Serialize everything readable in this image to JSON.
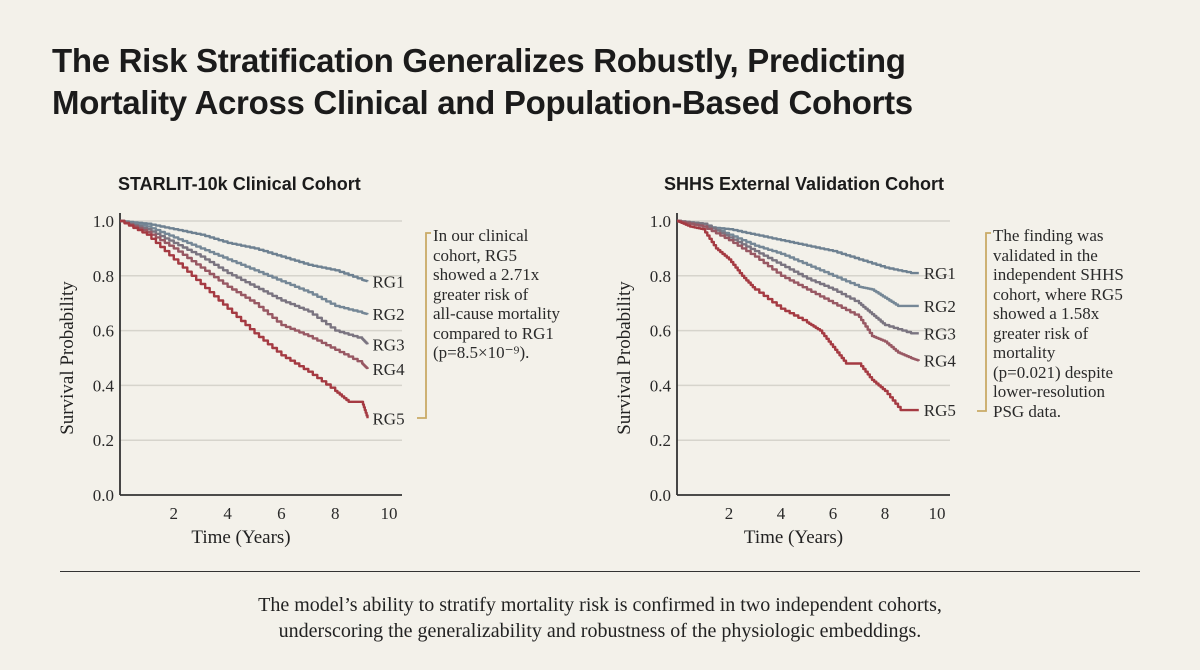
{
  "title_line1": "The Risk Stratification Generalizes Robustly, Predicting",
  "title_line2": "Mortality Across Clinical and Population-Based Cohorts",
  "footer_line1": "The model’s ability to stratify mortality risk is confirmed in two independent cohorts,",
  "footer_line2": "underscoring the generalizability and robustness of the physiologic embeddings.",
  "notes": [
    [
      "In our clinical",
      "cohort, RG5",
      "showed a 2.71x",
      "greater risk of",
      "all-cause mortality",
      "compared to RG1",
      "(p=8.5×10⁻⁹)."
    ],
    [
      "The finding was",
      "validated in the",
      "independent SHHS",
      "cohort, where RG5",
      "showed a 1.58x",
      "greater risk of",
      "mortality",
      "(p=0.021) despite",
      "lower-resolution",
      "PSG data."
    ]
  ],
  "colors": {
    "RG1": "#6e8191",
    "RG2": "#758796",
    "RG3": "#7a7480",
    "RG4": "#985863",
    "RG5": "#a53a42",
    "bracket": "#c9aa66",
    "grid": "#d6d4cc"
  },
  "chart_data": [
    {
      "type": "line",
      "title": "STARLIT-10k Clinical Cohort",
      "xlabel": "Time (Years)",
      "ylabel": "Survival Probability",
      "xlim": [
        0,
        10.5
      ],
      "ylim": [
        0,
        1.0
      ],
      "xticks": [
        "2",
        "4",
        "6",
        "8",
        "10"
      ],
      "yticks": [
        "0.0",
        "0.2",
        "0.4",
        "0.6",
        "0.8",
        "1.0"
      ],
      "grid": true,
      "step": true,
      "series": [
        {
          "name": "RG1",
          "x": [
            0,
            1,
            2,
            3,
            4,
            5,
            6,
            7,
            8,
            9,
            9.2
          ],
          "y": [
            1,
            0.99,
            0.97,
            0.95,
            0.92,
            0.9,
            0.87,
            0.84,
            0.82,
            0.785,
            0.78
          ]
        },
        {
          "name": "RG2",
          "x": [
            0,
            1,
            2,
            3,
            4,
            5,
            6,
            7,
            8,
            9,
            9.2
          ],
          "y": [
            1,
            0.98,
            0.94,
            0.9,
            0.86,
            0.82,
            0.78,
            0.74,
            0.69,
            0.665,
            0.66
          ]
        },
        {
          "name": "RG3",
          "x": [
            0,
            1,
            2,
            3,
            4,
            5,
            6,
            7,
            8,
            9,
            9.2
          ],
          "y": [
            1,
            0.97,
            0.92,
            0.87,
            0.81,
            0.76,
            0.71,
            0.67,
            0.6,
            0.57,
            0.55
          ]
        },
        {
          "name": "RG4",
          "x": [
            0,
            1,
            2,
            3,
            4,
            5,
            6,
            7,
            8,
            9,
            9.2
          ],
          "y": [
            1,
            0.96,
            0.9,
            0.83,
            0.76,
            0.7,
            0.62,
            0.58,
            0.53,
            0.48,
            0.46
          ]
        },
        {
          "name": "RG5",
          "x": [
            0,
            1,
            2,
            3,
            4,
            5,
            6,
            7,
            8,
            8.5,
            9,
            9.2
          ],
          "y": [
            1,
            0.95,
            0.86,
            0.77,
            0.68,
            0.59,
            0.51,
            0.45,
            0.38,
            0.34,
            0.34,
            0.28
          ]
        }
      ]
    },
    {
      "type": "line",
      "title": "SHHS External Validation Cohort",
      "xlabel": "Time (Years)",
      "ylabel": "Survival Probability",
      "xlim": [
        0,
        10.5
      ],
      "ylim": [
        0,
        1.0
      ],
      "xticks": [
        "2",
        "4",
        "6",
        "8",
        "10"
      ],
      "yticks": [
        "0.0",
        "0.2",
        "0.4",
        "0.6",
        "0.8",
        "1.0"
      ],
      "grid": true,
      "step": true,
      "series": [
        {
          "name": "RG1",
          "x": [
            0,
            1,
            2,
            3,
            4,
            5,
            6,
            7,
            8,
            9,
            9.3
          ],
          "y": [
            1,
            0.98,
            0.97,
            0.95,
            0.93,
            0.91,
            0.89,
            0.86,
            0.83,
            0.81,
            0.81
          ]
        },
        {
          "name": "RG2",
          "x": [
            0,
            1,
            2,
            3,
            4,
            5,
            6,
            7,
            7.5,
            8,
            8.5,
            9.3
          ],
          "y": [
            1,
            0.99,
            0.95,
            0.91,
            0.88,
            0.84,
            0.8,
            0.76,
            0.75,
            0.72,
            0.69,
            0.69
          ]
        },
        {
          "name": "RG3",
          "x": [
            0,
            1,
            2,
            3,
            4,
            5,
            6,
            7,
            7.5,
            8,
            9,
            9.3
          ],
          "y": [
            1,
            0.99,
            0.94,
            0.89,
            0.84,
            0.79,
            0.75,
            0.7,
            0.66,
            0.62,
            0.59,
            0.59
          ]
        },
        {
          "name": "RG4",
          "x": [
            0,
            1,
            2,
            3,
            4,
            5,
            6,
            7,
            7.5,
            8,
            8.5,
            9,
            9.3
          ],
          "y": [
            1,
            0.98,
            0.93,
            0.87,
            0.8,
            0.75,
            0.7,
            0.65,
            0.58,
            0.56,
            0.52,
            0.5,
            0.49
          ]
        },
        {
          "name": "RG5",
          "x": [
            0,
            0.5,
            1,
            1.5,
            2,
            2.5,
            3,
            4,
            5,
            5.5,
            6,
            6.5,
            7,
            7.5,
            8,
            8.6,
            9.3
          ],
          "y": [
            1,
            0.98,
            0.97,
            0.9,
            0.86,
            0.8,
            0.75,
            0.68,
            0.63,
            0.6,
            0.54,
            0.48,
            0.48,
            0.42,
            0.38,
            0.31,
            0.31
          ]
        }
      ]
    }
  ]
}
